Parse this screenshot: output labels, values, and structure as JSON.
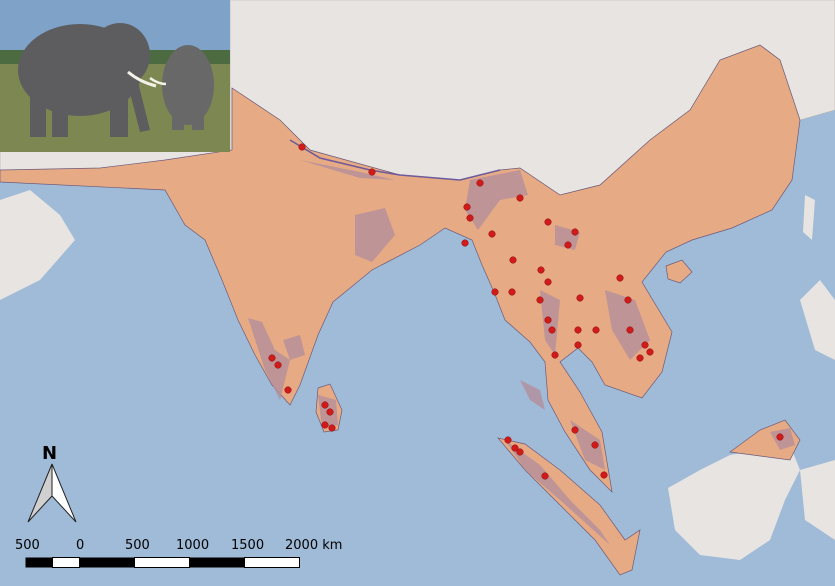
{
  "colors": {
    "sea": "#9fbbd7",
    "range": "#e6aa84",
    "habitat": "#b58f9c",
    "other_land": "#e7e4e1",
    "occurrence_point": "#d11a1a"
  },
  "north_arrow": {
    "label": "N"
  },
  "scale_bar": {
    "labels": [
      "500",
      "0",
      "500",
      "1000",
      "1500",
      "2000 km"
    ]
  },
  "inset_photo": {
    "subject": "elephants"
  }
}
